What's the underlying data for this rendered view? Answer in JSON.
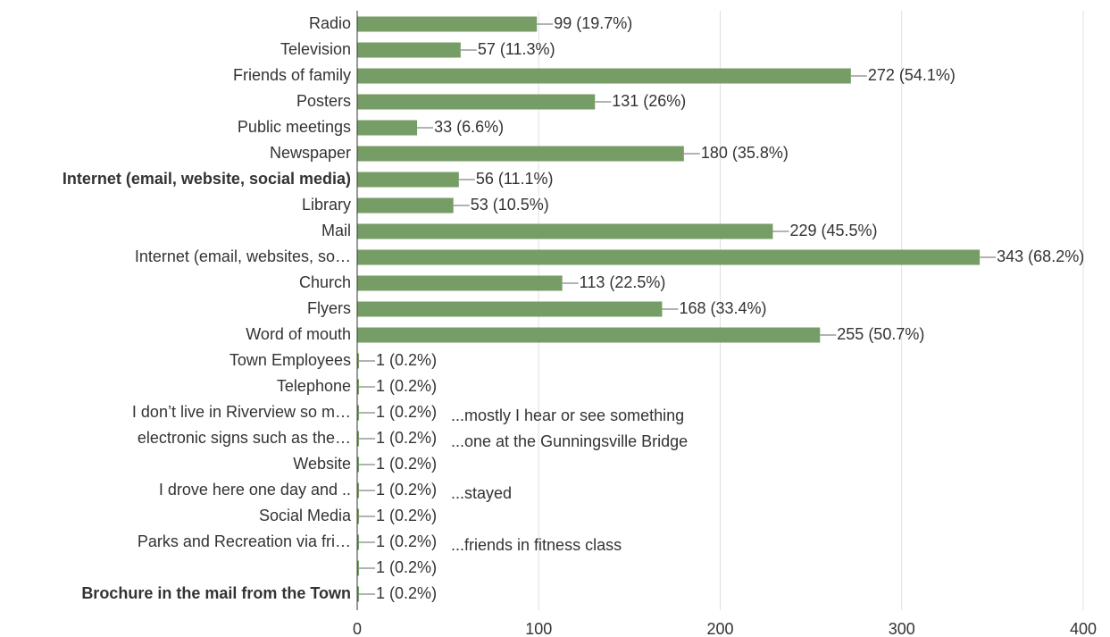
{
  "chart_data": {
    "type": "bar",
    "orientation": "horizontal",
    "categories": [
      "Radio",
      "Television",
      "Friends of family",
      "Posters",
      "Public meetings",
      "Newspaper",
      "Internet (email, website, social media)",
      "Library",
      "Mail",
      "Internet (email, websites, so…",
      "Church",
      "Flyers",
      "Word of mouth",
      "Town Employees",
      "Telephone",
      "I don’t live in Riverview so m…",
      "electronic signs such as the…",
      "Website",
      "I drove here one day and ..",
      "Social Media",
      "Parks and Recreation via fri…",
      null,
      "Brochure in the mail from the Town"
    ],
    "values": [
      99,
      57,
      272,
      131,
      33,
      180,
      56,
      53,
      229,
      343,
      113,
      168,
      255,
      1,
      1,
      1,
      1,
      1,
      1,
      1,
      1,
      1,
      1
    ],
    "value_labels": [
      "99 (19.7%)",
      "57 (11.3%)",
      "272 (54.1%)",
      "131 (26%)",
      "33 (6.6%)",
      "180 (35.8%)",
      "56 (11.1%)",
      "53 (10.5%)",
      "229 (45.5%)",
      "343 (68.2%)",
      "113 (22.5%)",
      "168 (33.4%)",
      "255 (50.7%)",
      "1 (0.2%)",
      "1 (0.2%)",
      "1 (0.2%)",
      "1 (0.2%)",
      "1 (0.2%)",
      "1 (0.2%)",
      "1 (0.2%)",
      "1 (0.2%)",
      "1 (0.2%)",
      "1 (0.2%)"
    ],
    "annotations": [
      null,
      null,
      null,
      null,
      null,
      null,
      null,
      null,
      null,
      null,
      null,
      null,
      null,
      null,
      null,
      "...mostly I hear or see something",
      "...one at the Gunningsville Bridge",
      null,
      "...stayed",
      null,
      "...friends in fitness class",
      null,
      null
    ],
    "bold_labels": [
      6,
      22
    ],
    "color": "#779d66",
    "xlim": [
      0,
      400
    ],
    "xticks": [
      0,
      100,
      200,
      300,
      400
    ],
    "grid": true
  }
}
